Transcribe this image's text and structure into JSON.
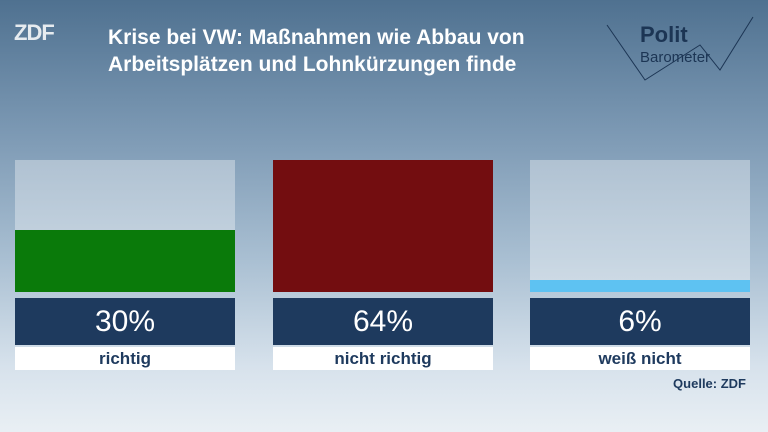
{
  "header": {
    "logo": "ZDF",
    "brand": "Polit",
    "brand_sub": "Barometer"
  },
  "chart_data": {
    "type": "bar",
    "title": "Krise bei VW: Maßnahmen wie Abbau von Arbeitsplätzen und Lohnkürzungen finde",
    "categories": [
      "richtig",
      "nicht richtig",
      "weiß nicht"
    ],
    "values": [
      30,
      64,
      6
    ],
    "value_labels": [
      "30%",
      "64%",
      "6%"
    ],
    "colors": [
      "#0a7a0a",
      "#730d10",
      "#5ec2f2"
    ],
    "ylim": [
      0,
      64
    ],
    "source": "Quelle: ZDF"
  }
}
